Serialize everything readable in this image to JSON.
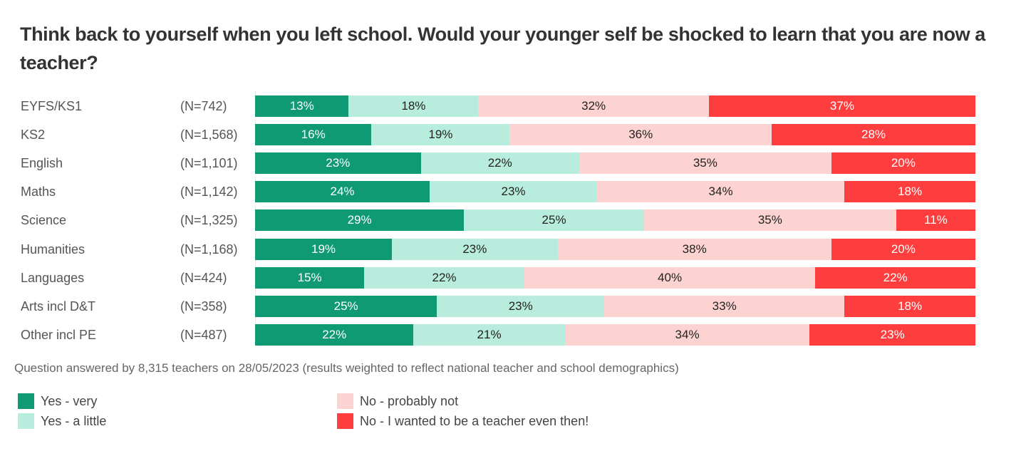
{
  "title": "Think back to yourself when you left school. Would your younger self be shocked to learn that you are now a teacher?",
  "footnote": "Question answered by 8,315 teachers on 28/05/2023 (results weighted to reflect national teacher and school demographics)",
  "colors": {
    "yes_very": "#0f9a74",
    "yes_little": "#b8ecdc",
    "no_probably": "#fdd3d1",
    "no_wanted": "#fe3d3e"
  },
  "legend": [
    {
      "label": "Yes - very",
      "color": "#0f9a74"
    },
    {
      "label": "Yes - a little",
      "color": "#b8ecdc"
    },
    {
      "label": "No - probably not",
      "color": "#fdd3d1"
    },
    {
      "label": "No - I wanted to be a teacher even then!",
      "color": "#fe3d3e"
    }
  ],
  "chart_data": {
    "type": "bar",
    "orientation": "horizontal",
    "stacked": true,
    "normalized": true,
    "title": "Think back to yourself when you left school. Would your younger self be shocked to learn that you are now a teacher?",
    "xlabel": "",
    "ylabel": "",
    "xlim": [
      0,
      100
    ],
    "grid": false,
    "legend_position": "bottom",
    "categories": [
      "EYFS/KS1",
      "KS2",
      "English",
      "Maths",
      "Science",
      "Humanities",
      "Languages",
      "Arts incl D&T",
      "Other incl PE"
    ],
    "sample_sizes": [
      "(N=742)",
      "(N=1,568)",
      "(N=1,101)",
      "(N=1,142)",
      "(N=1,325)",
      "(N=1,168)",
      "(N=424)",
      "(N=358)",
      "(N=487)"
    ],
    "series": [
      {
        "name": "Yes - very",
        "values": [
          13,
          16,
          23,
          24,
          29,
          19,
          15,
          25,
          22
        ]
      },
      {
        "name": "Yes - a little",
        "values": [
          18,
          19,
          22,
          23,
          25,
          23,
          22,
          23,
          21
        ]
      },
      {
        "name": "No - probably not",
        "values": [
          32,
          36,
          35,
          34,
          35,
          38,
          40,
          33,
          34
        ]
      },
      {
        "name": "No - I wanted to be a teacher even then!",
        "values": [
          37,
          28,
          20,
          18,
          11,
          20,
          22,
          18,
          23
        ]
      }
    ],
    "annotations": "Question answered by 8,315 teachers on 28/05/2023 (results weighted to reflect national teacher and school demographics)"
  }
}
